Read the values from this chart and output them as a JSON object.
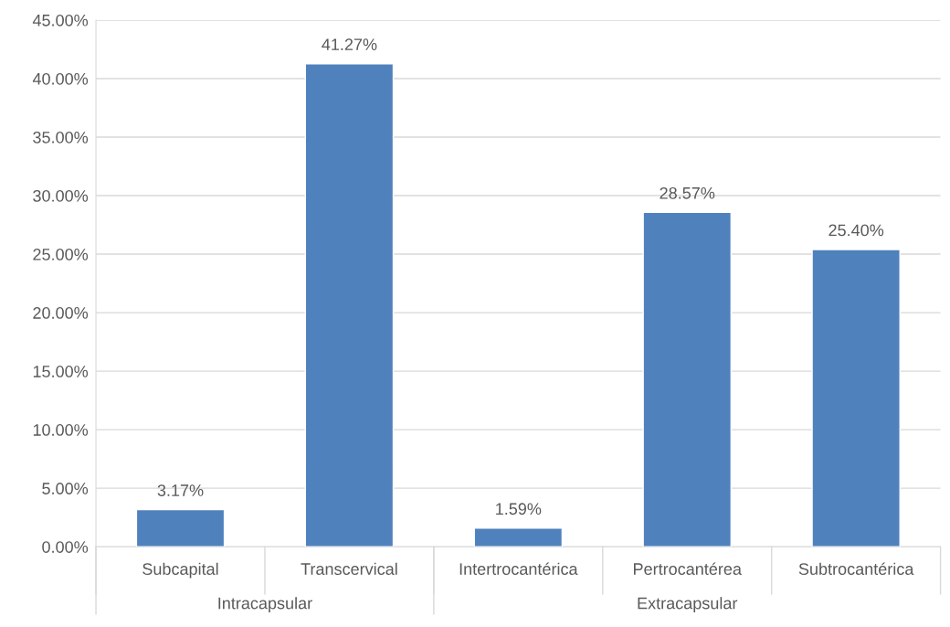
{
  "chart_data": {
    "type": "bar",
    "categories": [
      "Subcapital",
      "Transcervical",
      "Intertrocantérica",
      "Pertrocantérea",
      "Subtrocantérica"
    ],
    "values": [
      3.17,
      41.27,
      1.59,
      28.57,
      25.4
    ],
    "value_labels": [
      "3.17%",
      "41.27%",
      "1.59%",
      "28.57%",
      "25.40%"
    ],
    "color": "#4f81bd",
    "ylim": [
      0,
      45
    ],
    "yticks": [
      {
        "value": 0,
        "label": "0.00%"
      },
      {
        "value": 5,
        "label": "5.00%"
      },
      {
        "value": 10,
        "label": "10.00%"
      },
      {
        "value": 15,
        "label": "15.00%"
      },
      {
        "value": 20,
        "label": "20.00%"
      },
      {
        "value": 25,
        "label": "25.00%"
      },
      {
        "value": 30,
        "label": "30.00%"
      },
      {
        "value": 35,
        "label": "35.00%"
      },
      {
        "value": 40,
        "label": "40.00%"
      },
      {
        "value": 45,
        "label": "45.00%"
      }
    ],
    "grid": "y",
    "annotations": [
      "Intracapsular",
      "Extracapsular"
    ]
  }
}
